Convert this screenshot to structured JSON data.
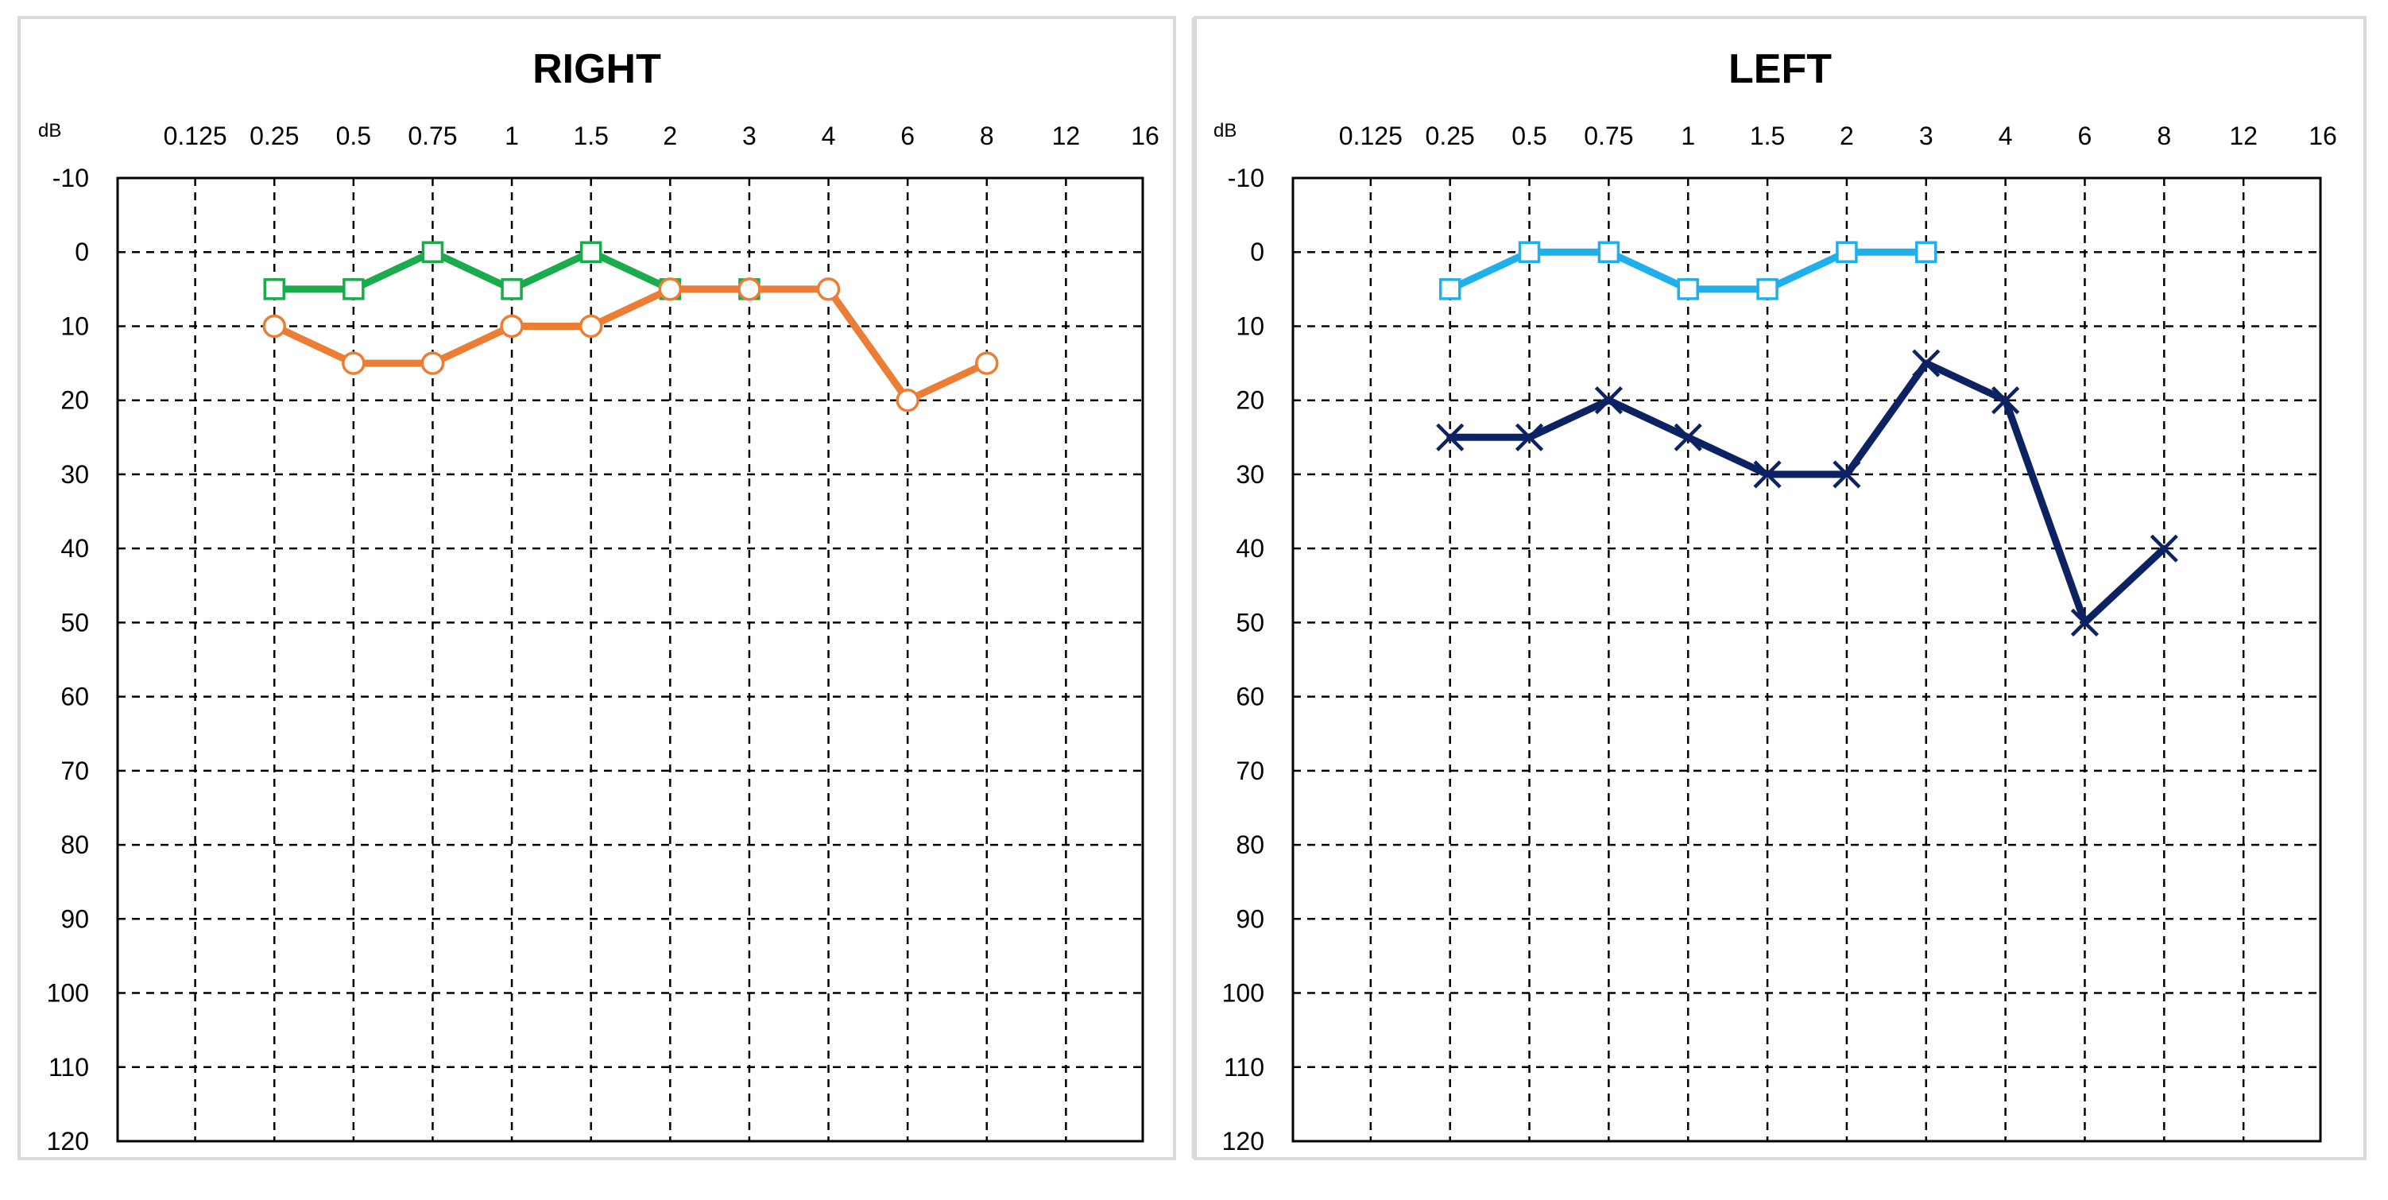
{
  "chart_data": [
    {
      "type": "line",
      "title": "RIGHT",
      "ylabel": "dB",
      "x_ticks": [
        "0.125",
        "0.25",
        "0.5",
        "0.75",
        "1",
        "1.5",
        "2",
        "3",
        "4",
        "6",
        "8",
        "12",
        "16"
      ],
      "y_ticks": [
        "-10",
        "0",
        "10",
        "20",
        "30",
        "40",
        "50",
        "60",
        "70",
        "80",
        "90",
        "100",
        "110",
        "120"
      ],
      "ylim": [
        -10,
        120
      ],
      "y_inverted": true,
      "grid": true,
      "series": [
        {
          "marker": "square",
          "color": "#1aab4c",
          "x": [
            "0.25",
            "0.5",
            "0.75",
            "1",
            "1.5",
            "2",
            "3"
          ],
          "values": [
            5,
            5,
            0,
            5,
            0,
            5,
            5
          ]
        },
        {
          "marker": "circle",
          "color": "#ec7d35",
          "x": [
            "0.25",
            "0.5",
            "0.75",
            "1",
            "1.5",
            "2",
            "3",
            "4",
            "6",
            "8"
          ],
          "values": [
            10,
            15,
            15,
            10,
            10,
            5,
            5,
            5,
            20,
            15
          ]
        }
      ]
    },
    {
      "type": "line",
      "title": "LEFT",
      "ylabel": "dB",
      "x_ticks": [
        "0.125",
        "0.25",
        "0.5",
        "0.75",
        "1",
        "1.5",
        "2",
        "3",
        "4",
        "6",
        "8",
        "12",
        "16"
      ],
      "y_ticks": [
        "-10",
        "0",
        "10",
        "20",
        "30",
        "40",
        "50",
        "60",
        "70",
        "80",
        "90",
        "100",
        "110",
        "120"
      ],
      "ylim": [
        -10,
        120
      ],
      "y_inverted": true,
      "grid": true,
      "series": [
        {
          "marker": "square",
          "color": "#1fb0ec",
          "x": [
            "0.25",
            "0.5",
            "0.75",
            "1",
            "1.5",
            "2",
            "3"
          ],
          "values": [
            5,
            0,
            0,
            5,
            5,
            0,
            0
          ]
        },
        {
          "marker": "x",
          "color": "#0d2262",
          "x": [
            "0.25",
            "0.5",
            "0.75",
            "1",
            "1.5",
            "2",
            "3",
            "4",
            "6",
            "8"
          ],
          "values": [
            25,
            25,
            20,
            25,
            30,
            30,
            15,
            20,
            50,
            40
          ]
        }
      ]
    }
  ]
}
